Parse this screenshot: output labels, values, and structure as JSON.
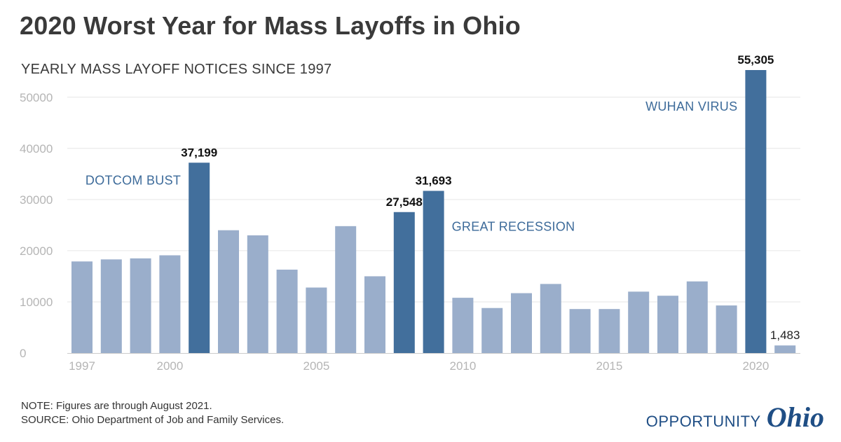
{
  "chart_data": {
    "type": "bar",
    "title": "2020 Worst Year for Mass Layoffs in Ohio",
    "subtitle": "YEARLY MASS LAYOFF NOTICES SINCE 1997",
    "x": [
      1997,
      1998,
      1999,
      2000,
      2001,
      2002,
      2003,
      2004,
      2005,
      2006,
      2007,
      2008,
      2009,
      2010,
      2011,
      2012,
      2013,
      2014,
      2015,
      2016,
      2017,
      2018,
      2019,
      2020,
      2021
    ],
    "values": [
      17900,
      18300,
      18500,
      19100,
      37199,
      24000,
      23000,
      16300,
      12800,
      24800,
      15000,
      27548,
      31693,
      10800,
      8800,
      11700,
      13500,
      8600,
      8600,
      12000,
      11200,
      14000,
      9300,
      55305,
      1483
    ],
    "highlighted_years": [
      2001,
      2008,
      2009,
      2020
    ],
    "data_labels": [
      {
        "year": 2001,
        "text": "37,199"
      },
      {
        "year": 2008,
        "text": "27,548"
      },
      {
        "year": 2009,
        "text": "31,693"
      },
      {
        "year": 2020,
        "text": "55,305"
      },
      {
        "year": 2021,
        "text": "1,483"
      }
    ],
    "annotations": [
      {
        "text": "DOTCOM BUST",
        "year": 2001
      },
      {
        "text": "GREAT RECESSION",
        "year": 2009
      },
      {
        "text": "WUHAN VIRUS",
        "year": 2020
      }
    ],
    "yticks": [
      0,
      10000,
      20000,
      30000,
      40000,
      50000
    ],
    "xticks": [
      1997,
      2000,
      2005,
      2010,
      2015,
      2020
    ],
    "ylim": [
      0,
      55305
    ],
    "grid": true,
    "colors": {
      "normal": "#9aaecb",
      "highlight": "#426f9c",
      "grid": "#e6e6e6",
      "axis": "#cccccc"
    }
  },
  "footer": {
    "note": "NOTE: Figures are through August 2021.",
    "source": "SOURCE: Ohio Department of Job and Family Services."
  },
  "logo": {
    "word": "OPPORTUNITY",
    "script": "Ohio"
  }
}
